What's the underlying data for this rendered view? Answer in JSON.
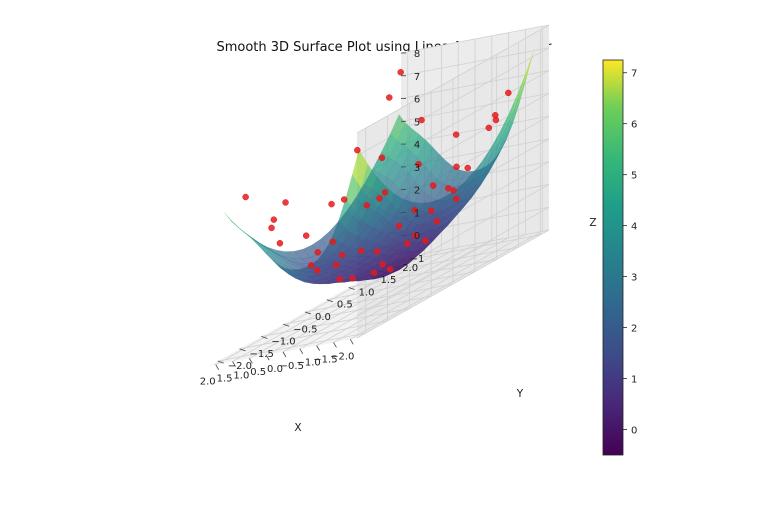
{
  "title": "Smooth 3D Surface Plot using LinearNDInterpolator",
  "chart_data": {
    "type": "surface3d",
    "title": "Smooth 3D Surface Plot using LinearNDInterpolator",
    "xlabel": "X",
    "ylabel": "Y",
    "zlabel": "Z",
    "xlim": [
      -2.2,
      2.2
    ],
    "ylim": [
      -2.2,
      2.2
    ],
    "zlim": [
      -1,
      8
    ],
    "xticks": [
      "−2.0",
      "−1.5",
      "−1.0",
      "−0.5",
      "0.0",
      "0.5",
      "1.0",
      "1.5",
      "2.0"
    ],
    "yticks": [
      "−2.0",
      "−1.5",
      "−1.0",
      "−0.5",
      "0.0",
      "0.5",
      "1.0",
      "1.5",
      "2.0"
    ],
    "zticks": [
      "−1",
      "0",
      "1",
      "2",
      "3",
      "4",
      "5",
      "6",
      "7",
      "8"
    ],
    "colormap": "viridis",
    "surface_alpha": 0.7,
    "grid": true,
    "colorbar": {
      "range": [
        -0.5,
        7.25
      ],
      "ticks": [
        "0",
        "1",
        "2",
        "3",
        "4",
        "5",
        "6",
        "7"
      ]
    },
    "scatter_color": "#e41a1c",
    "scatter_points": [
      {
        "x": -2.0,
        "y": -0.3,
        "z": 3.7
      },
      {
        "x": -1.9,
        "y": 1.2,
        "z": 5.2
      },
      {
        "x": -1.8,
        "y": 0.2,
        "z": 3.1
      },
      {
        "x": -1.7,
        "y": -1.3,
        "z": 4.3
      },
      {
        "x": -1.6,
        "y": 0.8,
        "z": 3.4
      },
      {
        "x": -1.5,
        "y": -0.7,
        "z": 2.5
      },
      {
        "x": -1.4,
        "y": 1.6,
        "z": 4.7
      },
      {
        "x": -1.3,
        "y": -1.8,
        "z": 4.9
      },
      {
        "x": -1.2,
        "y": 0.4,
        "z": 1.6
      },
      {
        "x": -1.1,
        "y": -0.2,
        "z": 1.3
      },
      {
        "x": -1.0,
        "y": 1.0,
        "z": 2.0
      },
      {
        "x": -0.9,
        "y": -1.1,
        "z": 2.0
      },
      {
        "x": -0.8,
        "y": 1.9,
        "z": 4.2
      },
      {
        "x": -0.7,
        "y": -1.6,
        "z": 3.0
      },
      {
        "x": -0.6,
        "y": 0.6,
        "z": 0.7
      },
      {
        "x": -0.5,
        "y": -0.5,
        "z": 0.5
      },
      {
        "x": -0.4,
        "y": 1.4,
        "z": 2.1
      },
      {
        "x": -0.3,
        "y": -1.9,
        "z": 3.7
      },
      {
        "x": -0.2,
        "y": 0.1,
        "z": 0.1
      },
      {
        "x": -0.1,
        "y": 1.7,
        "z": 2.9
      },
      {
        "x": 0.0,
        "y": -0.9,
        "z": 0.8
      },
      {
        "x": 0.1,
        "y": 0.9,
        "z": 0.8
      },
      {
        "x": 0.2,
        "y": -1.4,
        "z": 2.0
      },
      {
        "x": 0.3,
        "y": 2.0,
        "z": 4.1
      },
      {
        "x": 0.4,
        "y": -0.3,
        "z": 0.3
      },
      {
        "x": 0.5,
        "y": 1.2,
        "z": 1.7
      },
      {
        "x": 0.6,
        "y": -2.0,
        "z": 4.4
      },
      {
        "x": 0.7,
        "y": 0.5,
        "z": 0.7
      },
      {
        "x": 0.8,
        "y": -0.8,
        "z": 1.3
      },
      {
        "x": 0.9,
        "y": 1.6,
        "z": 3.4
      },
      {
        "x": 1.0,
        "y": -1.5,
        "z": 3.3
      },
      {
        "x": 1.1,
        "y": 0.0,
        "z": 1.2
      },
      {
        "x": 1.2,
        "y": 1.9,
        "z": 5.1
      },
      {
        "x": 1.3,
        "y": -0.4,
        "z": 1.8
      },
      {
        "x": 1.4,
        "y": 0.8,
        "z": 2.6
      },
      {
        "x": 1.5,
        "y": -1.9,
        "z": 5.9
      },
      {
        "x": 1.6,
        "y": 1.3,
        "z": 4.2
      },
      {
        "x": 1.7,
        "y": -1.1,
        "z": 4.1
      },
      {
        "x": 1.8,
        "y": 0.3,
        "z": 3.3
      },
      {
        "x": 1.9,
        "y": 1.7,
        "z": 6.5
      },
      {
        "x": 2.0,
        "y": -0.6,
        "z": 4.4
      },
      {
        "x": 1.95,
        "y": 2.0,
        "z": 7.3
      },
      {
        "x": -1.95,
        "y": -2.0,
        "z": 7.1
      },
      {
        "x": -1.25,
        "y": 2.0,
        "z": 5.5
      },
      {
        "x": 0.35,
        "y": 0.35,
        "z": 0.2
      },
      {
        "x": -0.35,
        "y": -1.25,
        "z": 1.7
      },
      {
        "x": 1.25,
        "y": 1.1,
        "z": 2.8
      },
      {
        "x": -1.55,
        "y": 0.0,
        "z": 2.4
      }
    ]
  }
}
